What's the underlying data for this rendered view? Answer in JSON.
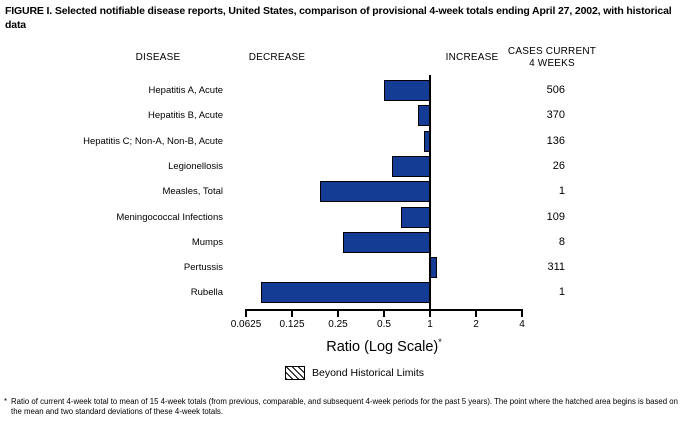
{
  "title": "FIGURE I. Selected notifiable disease reports, United States, comparison of provisional 4-week totals ending April 27, 2002, with historical data",
  "columns": {
    "disease": "DISEASE",
    "decrease": "DECREASE",
    "increase": "INCREASE",
    "cases_line1": "CASES CURRENT",
    "cases_line2": "4 WEEKS"
  },
  "chart_data": {
    "type": "bar",
    "orientation": "horizontal",
    "scale": "log2",
    "baseline_ratio": 1,
    "xlabel": "Ratio (Log Scale)",
    "xlabel_superscript": "*",
    "xlim": [
      0.0625,
      4
    ],
    "x_ticks": [
      "0.0625",
      "0.125",
      "0.25",
      "0.5",
      "1",
      "2",
      "4"
    ],
    "rows": [
      {
        "disease": "Hepatitis A, Acute",
        "ratio": 0.5,
        "cases": "506",
        "beyond_historical_limits": false
      },
      {
        "disease": "Hepatitis B, Acute",
        "ratio": 0.83,
        "cases": "370",
        "beyond_historical_limits": false
      },
      {
        "disease": "Hepatitis C; Non-A, Non-B, Acute",
        "ratio": 0.91,
        "cases": "136",
        "beyond_historical_limits": false
      },
      {
        "disease": "Legionellosis",
        "ratio": 0.56,
        "cases": "26",
        "beyond_historical_limits": false
      },
      {
        "disease": "Measles, Total",
        "ratio": 0.19,
        "cases": "1",
        "beyond_historical_limits": false
      },
      {
        "disease": "Meningococcal Infections",
        "ratio": 0.65,
        "cases": "109",
        "beyond_historical_limits": false
      },
      {
        "disease": "Mumps",
        "ratio": 0.27,
        "cases": "8",
        "beyond_historical_limits": false
      },
      {
        "disease": "Pertussis",
        "ratio": 1.11,
        "cases": "311",
        "beyond_historical_limits": false
      },
      {
        "disease": "Rubella",
        "ratio": 0.078,
        "cases": "1",
        "beyond_historical_limits": false
      }
    ],
    "legend_position": "bottom"
  },
  "legend": {
    "label": "Beyond Historical Limits"
  },
  "footnote": {
    "marker": "*",
    "text": "Ratio of current 4-week total to mean of 15 4-week totals (from previous, comparable, and subsequent 4-week periods for the past 5 years). The point where the hatched area begins is based on the mean and two standard deviations of these 4-week totals."
  },
  "colors": {
    "bar": "#143C94",
    "axis": "#000000",
    "background": "#FFFFFF"
  }
}
